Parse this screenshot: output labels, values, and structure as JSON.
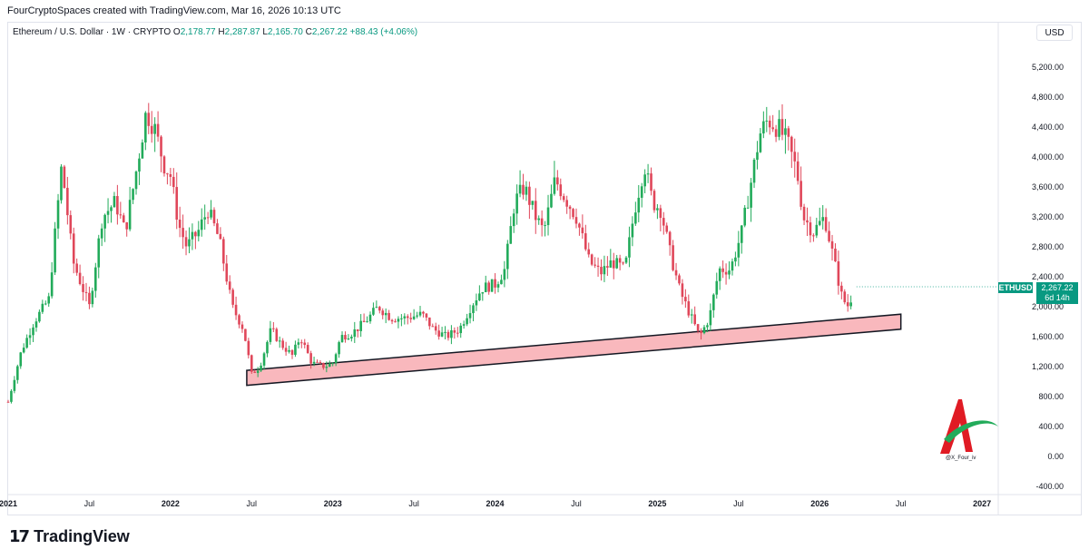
{
  "caption": "FourCryptoSpaces created with TradingView.com, Mar 16, 2026 10:13 UTC",
  "symbol": {
    "name": "Ethereum / U.S. Dollar · 1W · CRYPTO",
    "open_label": "O",
    "open": "2,178.77",
    "high_label": "H",
    "high": "2,287.87",
    "low_label": "L",
    "low": "2,165.70",
    "close_label": "C",
    "close": "2,267.22",
    "change": "+88.43 (+4.06%)"
  },
  "currency": "USD",
  "ticker_tag": "ETHUSD",
  "last_price": "2,267.22",
  "countdown": "6d 14h",
  "watermark_handle": "@X_Four_iv",
  "footer_brand": "TradingView",
  "colors": {
    "up": "#22ab5a",
    "down": "#e0475a",
    "support_fill": "#f9b8bd",
    "support_stroke": "#131722",
    "price_tag": "#089981"
  },
  "chart_data": {
    "type": "candlestick",
    "x_tick_labels": [
      "2021",
      "Jul",
      "2022",
      "Jul",
      "2023",
      "Jul",
      "2024",
      "Jul",
      "2025",
      "Jul",
      "2026",
      "Jul",
      "2027"
    ],
    "y_tick_labels": [
      "5,200.00",
      "4,800.00",
      "4,400.00",
      "4,000.00",
      "3,600.00",
      "3,200.00",
      "2,800.00",
      "2,400.00",
      "2,000.00",
      "1,600.00",
      "1,200.00",
      "800.00",
      "400.00",
      "0.00",
      "-400.00"
    ],
    "ylim": [
      -400,
      5200
    ],
    "x_ticks": [
      2021.0,
      2021.5,
      2022.0,
      2022.5,
      2023.0,
      2023.5,
      2024.0,
      2024.5,
      2025.0,
      2025.5,
      2026.0,
      2026.5,
      2027.0
    ],
    "price_path": [
      [
        2021.0,
        730
      ],
      [
        2021.08,
        1400
      ],
      [
        2021.16,
        1800
      ],
      [
        2021.25,
        2100
      ],
      [
        2021.33,
        3900
      ],
      [
        2021.4,
        2600
      ],
      [
        2021.45,
        2300
      ],
      [
        2021.5,
        2000
      ],
      [
        2021.58,
        3200
      ],
      [
        2021.66,
        3400
      ],
      [
        2021.72,
        3000
      ],
      [
        2021.78,
        3700
      ],
      [
        2021.85,
        4600
      ],
      [
        2021.9,
        4400
      ],
      [
        2021.96,
        3900
      ],
      [
        2022.0,
        3750
      ],
      [
        2022.05,
        3100
      ],
      [
        2022.1,
        2800
      ],
      [
        2022.17,
        3000
      ],
      [
        2022.23,
        3300
      ],
      [
        2022.3,
        2900
      ],
      [
        2022.38,
        2000
      ],
      [
        2022.45,
        1700
      ],
      [
        2022.5,
        1100
      ],
      [
        2022.55,
        1200
      ],
      [
        2022.62,
        1700
      ],
      [
        2022.68,
        1500
      ],
      [
        2022.75,
        1350
      ],
      [
        2022.8,
        1600
      ],
      [
        2022.87,
        1250
      ],
      [
        2022.95,
        1200
      ],
      [
        2023.0,
        1250
      ],
      [
        2023.05,
        1600
      ],
      [
        2023.12,
        1650
      ],
      [
        2023.2,
        1800
      ],
      [
        2023.28,
        2000
      ],
      [
        2023.36,
        1850
      ],
      [
        2023.45,
        1850
      ],
      [
        2023.55,
        1900
      ],
      [
        2023.62,
        1700
      ],
      [
        2023.7,
        1600
      ],
      [
        2023.78,
        1700
      ],
      [
        2023.85,
        2000
      ],
      [
        2023.92,
        2250
      ],
      [
        2024.0,
        2300
      ],
      [
        2024.06,
        2500
      ],
      [
        2024.12,
        3400
      ],
      [
        2024.18,
        3600
      ],
      [
        2024.25,
        3200
      ],
      [
        2024.3,
        3000
      ],
      [
        2024.37,
        3700
      ],
      [
        2024.42,
        3500
      ],
      [
        2024.5,
        3200
      ],
      [
        2024.58,
        2600
      ],
      [
        2024.65,
        2450
      ],
      [
        2024.72,
        2600
      ],
      [
        2024.8,
        2500
      ],
      [
        2024.86,
        3300
      ],
      [
        2024.92,
        3900
      ],
      [
        2024.97,
        3400
      ],
      [
        2025.02,
        3300
      ],
      [
        2025.08,
        2700
      ],
      [
        2025.14,
        2200
      ],
      [
        2025.2,
        1900
      ],
      [
        2025.26,
        1600
      ],
      [
        2025.32,
        1850
      ],
      [
        2025.38,
        2500
      ],
      [
        2025.45,
        2500
      ],
      [
        2025.52,
        3000
      ],
      [
        2025.58,
        3700
      ],
      [
        2025.63,
        4300
      ],
      [
        2025.68,
        4500
      ],
      [
        2025.74,
        4400
      ],
      [
        2025.8,
        4200
      ],
      [
        2025.86,
        3800
      ],
      [
        2025.9,
        3200
      ],
      [
        2025.96,
        3000
      ],
      [
        2026.03,
        3200
      ],
      [
        2026.1,
        2500
      ],
      [
        2026.14,
        2100
      ],
      [
        2026.18,
        2000
      ],
      [
        2026.21,
        2267
      ]
    ],
    "support_band": {
      "x_start": 2022.47,
      "x_end": 2026.5,
      "upper_start": 1150,
      "upper_end": 1900,
      "lower_start": 950,
      "lower_end": 1700
    }
  }
}
